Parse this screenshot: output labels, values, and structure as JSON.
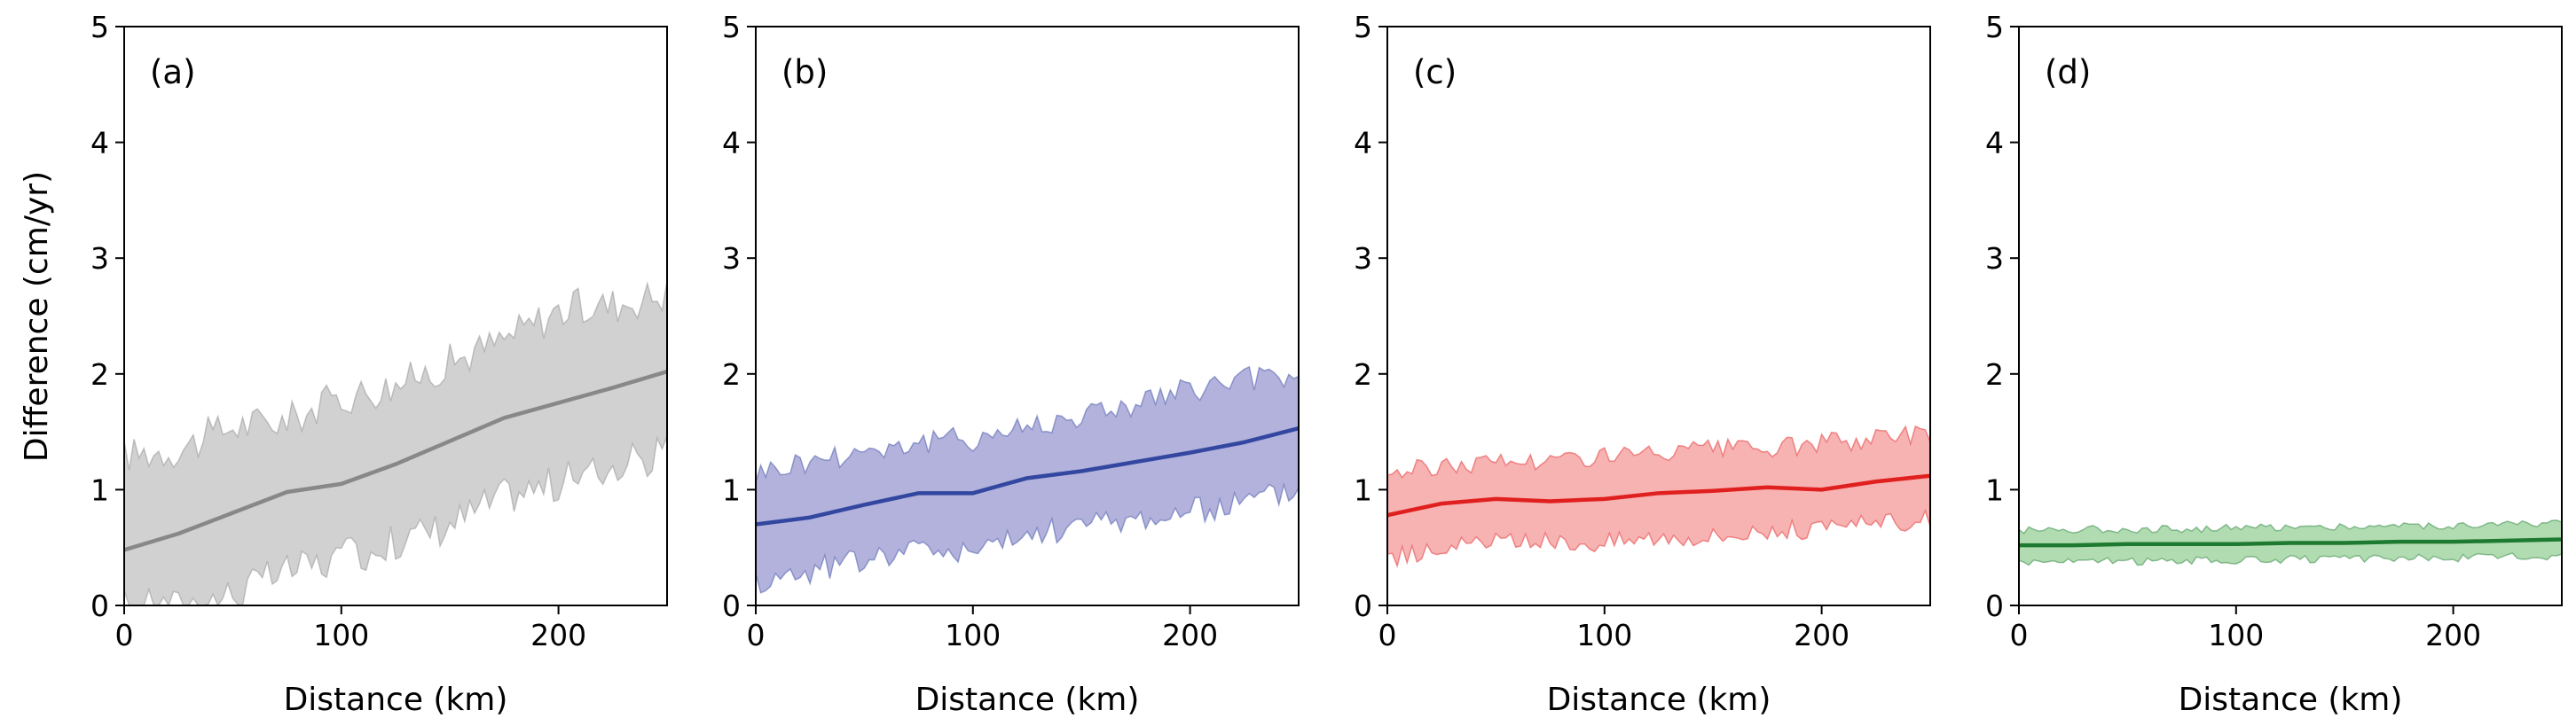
{
  "figure": {
    "ylabel": "Difference (cm/yr)",
    "xlabel": "Distance (km)"
  },
  "chart_data": [
    {
      "type": "area",
      "panel": "(a)",
      "color": "#888888",
      "fill_color": "#cccccc",
      "xlabel": "Distance (km)",
      "ylabel": "Difference (cm/yr)",
      "xlim": [
        0,
        250
      ],
      "ylim": [
        0,
        5
      ],
      "xticks": [
        0,
        100,
        200
      ],
      "yticks": [
        0,
        1,
        2,
        3,
        4,
        5
      ],
      "x": [
        0,
        25,
        50,
        75,
        100,
        125,
        150,
        175,
        200,
        225,
        250
      ],
      "mean": [
        0.48,
        0.62,
        0.8,
        0.98,
        1.05,
        1.22,
        1.42,
        1.62,
        1.75,
        1.88,
        2.02
      ],
      "upper": [
        1.3,
        1.35,
        1.55,
        1.6,
        1.8,
        1.9,
        2.1,
        2.3,
        2.55,
        2.6,
        2.7
      ],
      "lower": [
        0.0,
        0.0,
        0.1,
        0.3,
        0.4,
        0.55,
        0.7,
        0.95,
        1.05,
        1.2,
        1.3
      ]
    },
    {
      "type": "area",
      "panel": "(b)",
      "color": "#3347a0",
      "fill_color": "#aaaad8",
      "xlabel": "Distance (km)",
      "xlim": [
        0,
        250
      ],
      "ylim": [
        0,
        5
      ],
      "xticks": [
        0,
        100,
        200
      ],
      "yticks": [
        0,
        1,
        2,
        3,
        4,
        5
      ],
      "x": [
        0,
        25,
        50,
        75,
        100,
        125,
        150,
        175,
        200,
        225,
        250
      ],
      "mean": [
        0.7,
        0.76,
        0.87,
        0.97,
        0.97,
        1.1,
        1.16,
        1.24,
        1.32,
        1.41,
        1.53
      ],
      "upper": [
        1.15,
        1.25,
        1.35,
        1.4,
        1.45,
        1.55,
        1.65,
        1.75,
        1.85,
        1.95,
        2.0
      ],
      "lower": [
        0.2,
        0.3,
        0.4,
        0.5,
        0.45,
        0.6,
        0.7,
        0.75,
        0.8,
        0.9,
        1.0
      ]
    },
    {
      "type": "area",
      "panel": "(c)",
      "color": "#e0201e",
      "fill_color": "#f6aaaa",
      "xlabel": "Distance (km)",
      "xlim": [
        0,
        250
      ],
      "ylim": [
        0,
        5
      ],
      "xticks": [
        0,
        100,
        200
      ],
      "yticks": [
        0,
        1,
        2,
        3,
        4,
        5
      ],
      "x": [
        0,
        25,
        50,
        75,
        100,
        125,
        150,
        175,
        200,
        225,
        250
      ],
      "mean": [
        0.78,
        0.88,
        0.92,
        0.9,
        0.92,
        0.97,
        0.99,
        1.02,
        1.0,
        1.07,
        1.12
      ],
      "upper": [
        1.15,
        1.2,
        1.25,
        1.25,
        1.3,
        1.3,
        1.35,
        1.35,
        1.4,
        1.45,
        1.5
      ],
      "lower": [
        0.4,
        0.5,
        0.55,
        0.55,
        0.55,
        0.6,
        0.6,
        0.65,
        0.65,
        0.7,
        0.75
      ]
    },
    {
      "type": "area",
      "panel": "(d)",
      "color": "#1d7a30",
      "fill_color": "#a8d8a8",
      "xlabel": "Distance (km)",
      "xlim": [
        0,
        250
      ],
      "ylim": [
        0,
        5
      ],
      "xticks": [
        0,
        100,
        200
      ],
      "yticks": [
        0,
        1,
        2,
        3,
        4,
        5
      ],
      "x": [
        0,
        25,
        50,
        75,
        100,
        125,
        150,
        175,
        200,
        225,
        250
      ],
      "mean": [
        0.52,
        0.52,
        0.53,
        0.53,
        0.53,
        0.54,
        0.54,
        0.55,
        0.55,
        0.56,
        0.57
      ],
      "upper": [
        0.65,
        0.66,
        0.66,
        0.66,
        0.67,
        0.68,
        0.68,
        0.69,
        0.69,
        0.7,
        0.71
      ],
      "lower": [
        0.38,
        0.38,
        0.38,
        0.39,
        0.39,
        0.4,
        0.4,
        0.41,
        0.41,
        0.42,
        0.43
      ]
    }
  ]
}
